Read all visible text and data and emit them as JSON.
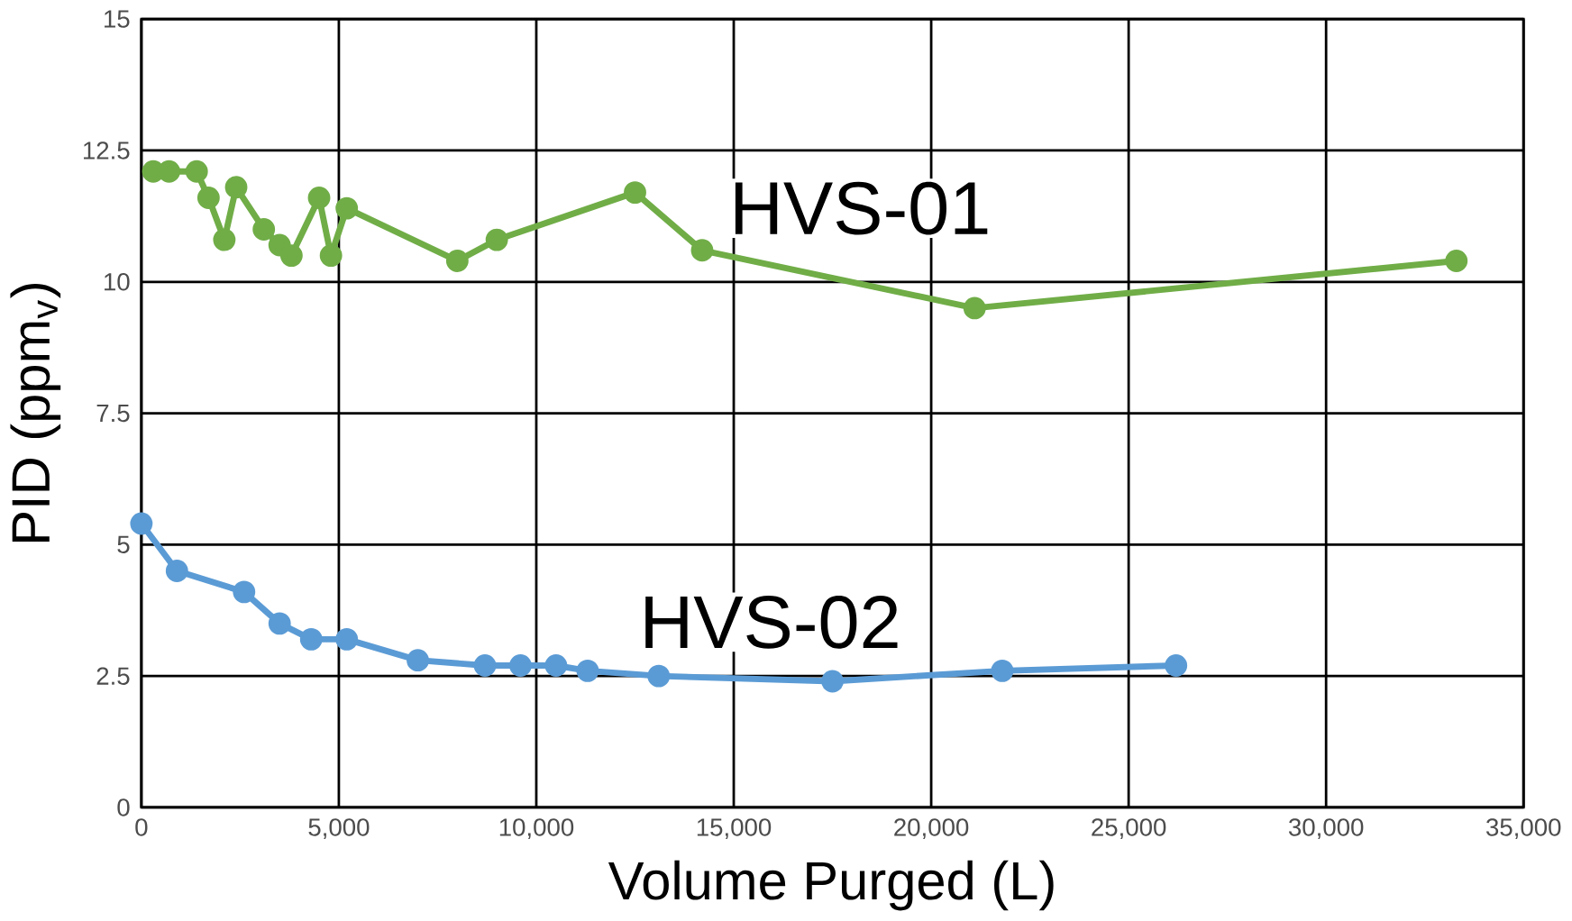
{
  "chart_data": {
    "type": "line",
    "xlabel": "Volume Purged (L)",
    "ylabel": "PID (ppm$_{v}$)",
    "xlim": [
      0,
      35000
    ],
    "ylim": [
      0,
      15
    ],
    "xticks": [
      0,
      {
        "value": 5000,
        "label": "5,000"
      },
      {
        "value": 10000,
        "label": "10,000"
      },
      {
        "value": 15000,
        "label": "15,000"
      },
      {
        "value": 20000,
        "label": "20,000"
      },
      {
        "value": 25000,
        "label": "25,000"
      },
      {
        "value": 30000,
        "label": "30,000"
      },
      {
        "value": 35000,
        "label": "35,000"
      }
    ],
    "yticks": [
      0,
      2.5,
      5,
      7.5,
      10,
      12.5,
      15
    ],
    "grid": true,
    "marker": "circle",
    "line_style": "solid",
    "series": [
      {
        "name": "HVS-01",
        "color": "#70ad47",
        "x": [
          300,
          700,
          1400,
          1700,
          2100,
          2400,
          3100,
          3500,
          3800,
          4500,
          4800,
          5200,
          8000,
          9000,
          12500,
          14200,
          21100,
          33300
        ],
        "values": [
          12.1,
          12.1,
          12.1,
          11.6,
          10.8,
          11.8,
          11.0,
          10.7,
          10.5,
          11.6,
          10.5,
          11.4,
          10.4,
          10.8,
          11.7,
          10.6,
          9.5,
          10.4
        ]
      },
      {
        "name": "HVS-02",
        "color": "#5b9bd5",
        "x": [
          0,
          900,
          2600,
          3500,
          4300,
          5200,
          7000,
          8700,
          9600,
          10500,
          11300,
          13100,
          17500,
          21800,
          26200
        ],
        "values": [
          5.4,
          4.5,
          4.1,
          3.5,
          3.2,
          3.2,
          2.8,
          2.7,
          2.7,
          2.7,
          2.6,
          2.5,
          2.4,
          2.6,
          2.7
        ]
      }
    ]
  }
}
